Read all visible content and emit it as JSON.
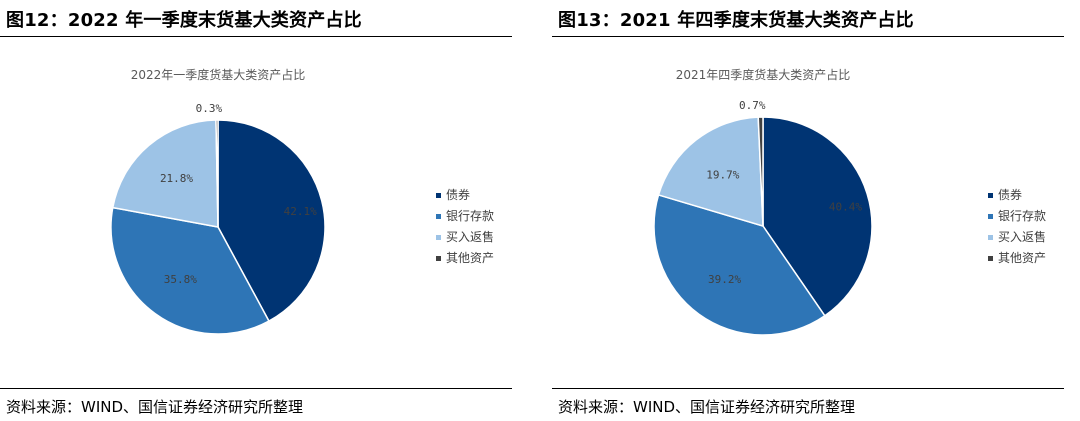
{
  "panels": [
    {
      "figure_title": "图12：2022 年一季度末货基大类资产占比",
      "source": "资料来源：WIND、国信证券经济研究所整理"
    },
    {
      "figure_title": "图13：2021 年四季度末货基大类资产占比",
      "source": "资料来源：WIND、国信证券经济研究所整理"
    }
  ],
  "chart_data": [
    {
      "type": "pie",
      "title": "2022年一季度货基大类资产占比",
      "categories": [
        "债券",
        "银行存款",
        "买入返售",
        "其他资产"
      ],
      "values": [
        42.1,
        35.8,
        21.8,
        0.3
      ],
      "labels": [
        "42.1%",
        "35.8%",
        "21.8%",
        "0.3%"
      ],
      "colors": [
        "#003473",
        "#2E75B6",
        "#9DC3E6",
        "#404040"
      ],
      "legend_position": "right"
    },
    {
      "type": "pie",
      "title": "2021年四季度货基大类资产占比",
      "categories": [
        "债券",
        "银行存款",
        "买入返售",
        "其他资产"
      ],
      "values": [
        40.4,
        39.2,
        19.7,
        0.7
      ],
      "labels": [
        "40.4%",
        "39.2%",
        "19.7%",
        "0.7%"
      ],
      "colors": [
        "#003473",
        "#2E75B6",
        "#9DC3E6",
        "#404040"
      ],
      "legend_position": "right"
    }
  ]
}
